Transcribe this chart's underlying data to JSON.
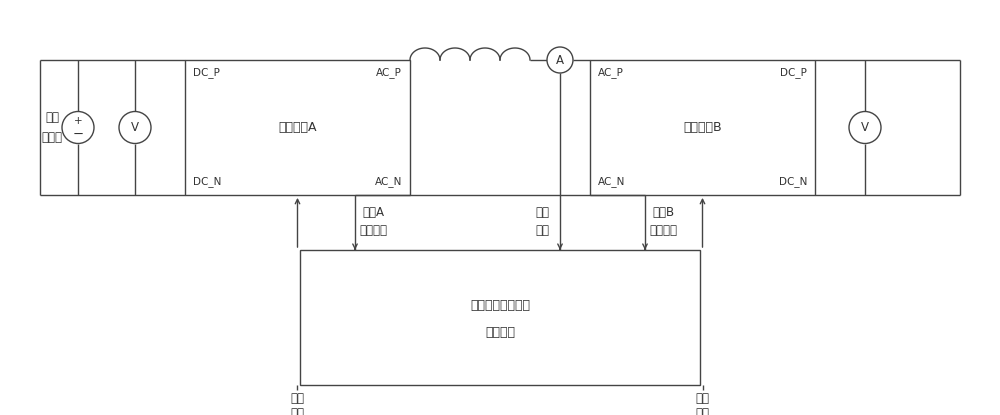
{
  "bg_color": "#ffffff",
  "line_color": "#444444",
  "text_color": "#333333",
  "font_size": 8.5,
  "unit_A_label": "功率单元A",
  "unit_B_label": "功率单元B",
  "control_label_line1": "功率模块对拖测试",
  "control_label_line2": "控制平台",
  "dc_source_label_1": "直流",
  "dc_source_label_2": "电压源",
  "label_dc_p": "DC_P",
  "label_dc_n": "DC_N",
  "label_ac_p_left": "AC_P",
  "label_ac_n_left": "AC_N",
  "label_ac_p_right": "AC_P",
  "label_ac_n_right": "AC_N",
  "label_dc_p_right": "DC_P",
  "label_dc_n_right": "DC_N",
  "label_unit_a_dc_1": "单元A",
  "label_unit_a_dc_2": "直流电压",
  "label_ac_current_1": "交流",
  "label_ac_current_2": "电流",
  "label_unit_b_dc_1": "单元B",
  "label_unit_b_dc_2": "直流电压",
  "label_drive_a_1": "驱动",
  "label_drive_a_2": "信号",
  "label_drive_b_1": "驱动",
  "label_drive_b_2": "信号",
  "label_V": "V",
  "label_A": "A",
  "label_plus": "+",
  "label_minus": "−"
}
